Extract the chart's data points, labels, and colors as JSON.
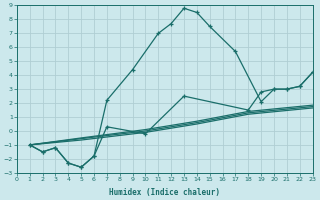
{
  "xlabel": "Humidex (Indice chaleur)",
  "bg_color": "#cce8ec",
  "grid_color": "#b0ced4",
  "line_color": "#1a6e6a",
  "xlim": [
    0,
    23
  ],
  "ylim": [
    -3,
    9
  ],
  "xticks": [
    0,
    1,
    2,
    3,
    4,
    5,
    6,
    7,
    8,
    9,
    10,
    11,
    12,
    13,
    14,
    15,
    16,
    17,
    18,
    19,
    20,
    21,
    22,
    23
  ],
  "yticks": [
    -3,
    -2,
    -1,
    0,
    1,
    2,
    3,
    4,
    5,
    6,
    7,
    8,
    9
  ],
  "line1_x": [
    1,
    2,
    3,
    4,
    5,
    6,
    7,
    9,
    11,
    12,
    13,
    14,
    15,
    17,
    19,
    20,
    21,
    22,
    23
  ],
  "line1_y": [
    -1,
    -1.5,
    -1.2,
    -2.3,
    -2.6,
    -1.8,
    2.2,
    4.4,
    7.0,
    7.7,
    8.8,
    8.5,
    7.5,
    5.7,
    2.1,
    3.0,
    3.0,
    3.2,
    4.2
  ],
  "line2_x": [
    1,
    2,
    3,
    4,
    5,
    6,
    7,
    10,
    13,
    18,
    19,
    20,
    21,
    22,
    23
  ],
  "line2_y": [
    -1,
    -1.5,
    -1.2,
    -2.3,
    -2.6,
    -1.8,
    0.3,
    -0.2,
    2.5,
    1.5,
    2.8,
    3.0,
    3.0,
    3.2,
    4.2
  ],
  "line3_x": [
    1,
    23
  ],
  "line3_y": [
    -1,
    4.2
  ],
  "line4_x": [
    1,
    23
  ],
  "line4_y": [
    -1,
    4.2
  ],
  "straight1_x": [
    1,
    5,
    10,
    14,
    18,
    23
  ],
  "straight1_y": [
    -1,
    -0.5,
    0.1,
    0.7,
    1.4,
    1.85
  ],
  "straight2_x": [
    1,
    5,
    10,
    14,
    18,
    23
  ],
  "straight2_y": [
    -1,
    -0.55,
    0.0,
    0.6,
    1.3,
    1.75
  ],
  "straight3_x": [
    1,
    5,
    10,
    14,
    18,
    23
  ],
  "straight3_y": [
    -1,
    -0.65,
    -0.1,
    0.5,
    1.2,
    1.65
  ]
}
